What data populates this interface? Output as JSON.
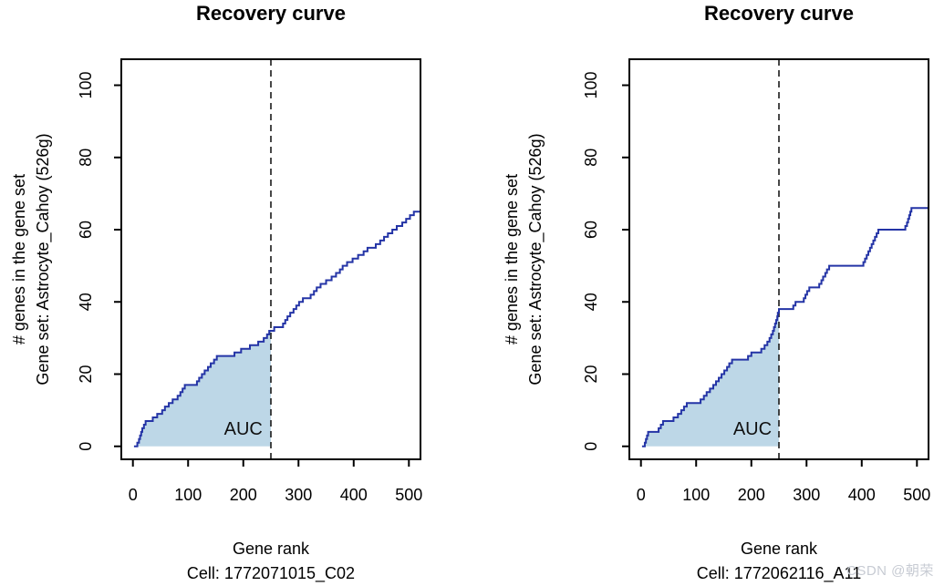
{
  "page": {
    "background": "#ffffff"
  },
  "watermark": {
    "text": "CSDN @朝荣",
    "color": "#c7cbd3"
  },
  "chart_data": [
    {
      "type": "area",
      "title": "Recovery curve",
      "xlabel": "Gene rank",
      "xlabel_line2": "Cell: 1772071015_C02",
      "ylabel_line1": "# genes in the gene set",
      "ylabel_line2": "Gene set: Astrocyte_Cahoy (526g)",
      "xticks": [
        0,
        100,
        200,
        300,
        400,
        500
      ],
      "yticks": [
        0,
        20,
        40,
        60,
        80,
        100
      ],
      "xlim": [
        -21,
        521
      ],
      "ylim": [
        -3.6,
        107.2
      ],
      "grid": false,
      "threshold_x": 250,
      "value_at_threshold": 32,
      "auc_label": "AUC",
      "auc_label_at": [
        200,
        5
      ],
      "line_color": "#2434A6",
      "fill_color": "#BDD7E7",
      "threshold_color": "#1a1a1a",
      "axis_color": "#000000",
      "curve_step_points": [
        [
          2,
          0
        ],
        [
          8,
          1
        ],
        [
          11,
          2
        ],
        [
          13,
          3
        ],
        [
          15,
          4
        ],
        [
          17,
          5
        ],
        [
          20,
          6
        ],
        [
          23,
          7
        ],
        [
          36,
          8
        ],
        [
          44,
          9
        ],
        [
          53,
          10
        ],
        [
          58,
          11
        ],
        [
          65,
          12
        ],
        [
          72,
          13
        ],
        [
          81,
          14
        ],
        [
          86,
          15
        ],
        [
          90,
          16
        ],
        [
          94,
          17
        ],
        [
          116,
          18
        ],
        [
          120,
          19
        ],
        [
          125,
          20
        ],
        [
          130,
          21
        ],
        [
          136,
          22
        ],
        [
          141,
          23
        ],
        [
          147,
          24
        ],
        [
          152,
          25
        ],
        [
          184,
          26
        ],
        [
          196,
          27
        ],
        [
          212,
          28
        ],
        [
          227,
          29
        ],
        [
          237,
          30
        ],
        [
          243,
          31
        ],
        [
          247,
          32
        ],
        [
          256,
          33
        ],
        [
          272,
          34
        ],
        [
          276,
          35
        ],
        [
          280,
          36
        ],
        [
          285,
          37
        ],
        [
          291,
          38
        ],
        [
          296,
          39
        ],
        [
          301,
          40
        ],
        [
          308,
          41
        ],
        [
          322,
          42
        ],
        [
          328,
          43
        ],
        [
          333,
          44
        ],
        [
          340,
          45
        ],
        [
          350,
          46
        ],
        [
          360,
          47
        ],
        [
          368,
          48
        ],
        [
          375,
          49
        ],
        [
          380,
          50
        ],
        [
          388,
          51
        ],
        [
          398,
          52
        ],
        [
          408,
          53
        ],
        [
          418,
          54
        ],
        [
          425,
          55
        ],
        [
          440,
          56
        ],
        [
          448,
          57
        ],
        [
          455,
          58
        ],
        [
          462,
          59
        ],
        [
          470,
          60
        ],
        [
          478,
          61
        ],
        [
          488,
          62
        ],
        [
          495,
          63
        ],
        [
          502,
          64
        ],
        [
          509,
          65
        ],
        [
          520,
          65
        ]
      ]
    },
    {
      "type": "area",
      "title": "Recovery curve",
      "xlabel": "Gene rank",
      "xlabel_line2": "Cell: 1772062116_A11",
      "ylabel_line1": "# genes in the gene set",
      "ylabel_line2": "Gene set: Astrocyte_Cahoy (526g)",
      "xticks": [
        0,
        100,
        200,
        300,
        400,
        500
      ],
      "yticks": [
        0,
        20,
        40,
        60,
        80,
        100
      ],
      "xlim": [
        -21,
        521
      ],
      "ylim": [
        -3.6,
        107.2
      ],
      "grid": false,
      "threshold_x": 250,
      "value_at_threshold": 38,
      "auc_label": "AUC",
      "auc_label_at": [
        202,
        5
      ],
      "line_color": "#2434A6",
      "fill_color": "#BDD7E7",
      "threshold_color": "#1a1a1a",
      "axis_color": "#000000",
      "curve_step_points": [
        [
          2,
          0
        ],
        [
          7,
          1
        ],
        [
          9,
          2
        ],
        [
          11,
          3
        ],
        [
          13,
          4
        ],
        [
          32,
          5
        ],
        [
          36,
          6
        ],
        [
          40,
          7
        ],
        [
          59,
          8
        ],
        [
          67,
          9
        ],
        [
          73,
          10
        ],
        [
          78,
          11
        ],
        [
          83,
          12
        ],
        [
          108,
          13
        ],
        [
          114,
          14
        ],
        [
          119,
          15
        ],
        [
          125,
          16
        ],
        [
          131,
          17
        ],
        [
          136,
          18
        ],
        [
          141,
          19
        ],
        [
          146,
          20
        ],
        [
          151,
          21
        ],
        [
          156,
          22
        ],
        [
          160,
          23
        ],
        [
          165,
          24
        ],
        [
          194,
          25
        ],
        [
          200,
          26
        ],
        [
          218,
          27
        ],
        [
          224,
          28
        ],
        [
          229,
          29
        ],
        [
          233,
          30
        ],
        [
          236,
          31
        ],
        [
          239,
          32
        ],
        [
          241,
          33
        ],
        [
          243,
          34
        ],
        [
          245,
          35
        ],
        [
          247,
          36
        ],
        [
          248,
          37
        ],
        [
          250,
          38
        ],
        [
          276,
          39
        ],
        [
          280,
          40
        ],
        [
          295,
          41
        ],
        [
          298,
          42
        ],
        [
          301,
          43
        ],
        [
          305,
          44
        ],
        [
          323,
          45
        ],
        [
          327,
          46
        ],
        [
          330,
          47
        ],
        [
          334,
          48
        ],
        [
          337,
          49
        ],
        [
          341,
          50
        ],
        [
          403,
          51
        ],
        [
          406,
          52
        ],
        [
          409,
          53
        ],
        [
          412,
          54
        ],
        [
          415,
          55
        ],
        [
          418,
          56
        ],
        [
          421,
          57
        ],
        [
          424,
          58
        ],
        [
          427,
          59
        ],
        [
          430,
          60
        ],
        [
          479,
          61
        ],
        [
          482,
          62
        ],
        [
          484,
          63
        ],
        [
          486,
          64
        ],
        [
          488,
          65
        ],
        [
          490,
          66
        ],
        [
          522,
          66
        ]
      ]
    }
  ]
}
